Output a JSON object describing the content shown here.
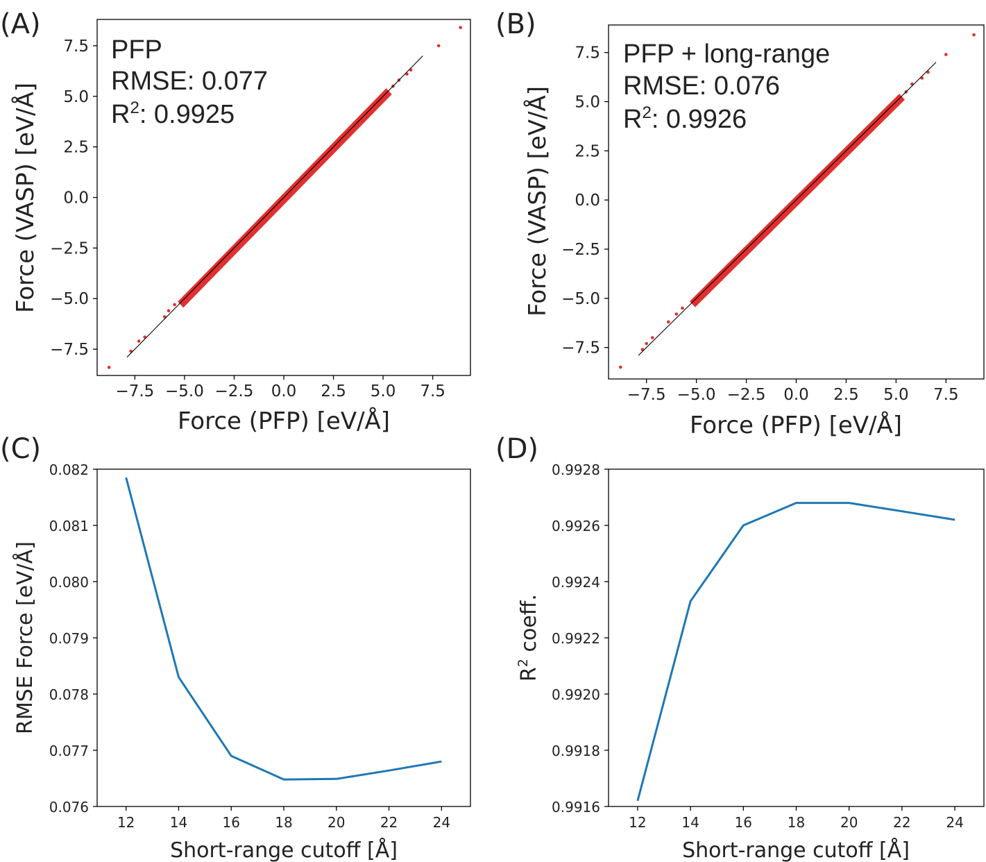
{
  "colors": {
    "scatter": "#e03030",
    "line": "#1f77b4",
    "reference": "#000000"
  },
  "chart_data": [
    {
      "panel": "(A)",
      "type": "scatter",
      "xlabel": "Force (PFP) [eV/Å]",
      "ylabel": "Force (VASP) [eV/Å]",
      "xlim": [
        -9.4,
        9.4
      ],
      "ylim": [
        -8.8,
        8.8
      ],
      "xticks": [
        -7.5,
        -5.0,
        -2.5,
        0.0,
        2.5,
        5.0,
        7.5
      ],
      "xtick_labels": [
        "−7.5",
        "−5.0",
        "−2.5",
        "0.0",
        "2.5",
        "5.0",
        "7.5"
      ],
      "yticks": [
        -7.5,
        -5.0,
        -2.5,
        0.0,
        2.5,
        5.0,
        7.5
      ],
      "ytick_labels": [
        "−7.5",
        "−5.0",
        "−2.5",
        "0.0",
        "2.5",
        "5.0",
        "7.5"
      ],
      "annotation": {
        "name": "PFP",
        "rmse": "RMSE: 0.077",
        "r2_prefix": "R",
        "r2_sup": "2",
        "r2_value": ": 0.9925"
      },
      "reference_line": {
        "x": [
          -7.9,
          7.0
        ],
        "y": [
          -7.9,
          7.0
        ]
      },
      "band": {
        "x_from": -5.2,
        "x_to": 5.3
      },
      "outliers": [
        {
          "x": -8.8,
          "y": -8.4
        },
        {
          "x": -7.7,
          "y": -7.6
        },
        {
          "x": -7.3,
          "y": -7.1
        },
        {
          "x": -7.0,
          "y": -6.9
        },
        {
          "x": -6.0,
          "y": -5.9
        },
        {
          "x": -5.8,
          "y": -5.6
        },
        {
          "x": -5.5,
          "y": -5.3
        },
        {
          "x": 5.5,
          "y": 5.5
        },
        {
          "x": 5.8,
          "y": 5.8
        },
        {
          "x": 6.2,
          "y": 6.1
        },
        {
          "x": 6.4,
          "y": 6.3
        },
        {
          "x": 7.8,
          "y": 7.5
        },
        {
          "x": 8.9,
          "y": 8.4
        }
      ]
    },
    {
      "panel": "(B)",
      "type": "scatter",
      "xlabel": "Force (PFP) [eV/Å]",
      "ylabel": "Force (VASP) [eV/Å]",
      "xlim": [
        -9.4,
        9.4
      ],
      "ylim": [
        -9.1,
        8.9
      ],
      "xticks": [
        -7.5,
        -5.0,
        -2.5,
        0.0,
        2.5,
        5.0,
        7.5
      ],
      "xtick_labels": [
        "−7.5",
        "−5.0",
        "−2.5",
        "0.0",
        "2.5",
        "5.0",
        "7.5"
      ],
      "yticks": [
        -7.5,
        -5.0,
        -2.5,
        0.0,
        2.5,
        5.0,
        7.5
      ],
      "ytick_labels": [
        "−7.5",
        "−5.0",
        "−2.5",
        "0.0",
        "2.5",
        "5.0",
        "7.5"
      ],
      "annotation": {
        "name": "PFP + long-range",
        "rmse": "RMSE: 0.076",
        "r2_prefix": "R",
        "r2_sup": "2",
        "r2_value": ": 0.9926"
      },
      "reference_line": {
        "x": [
          -7.9,
          7.0
        ],
        "y": [
          -7.9,
          7.0
        ]
      },
      "band": {
        "x_from": -5.2,
        "x_to": 5.3
      },
      "outliers": [
        {
          "x": -8.8,
          "y": -8.5
        },
        {
          "x": -7.7,
          "y": -7.6
        },
        {
          "x": -7.5,
          "y": -7.3
        },
        {
          "x": -7.2,
          "y": -7.0
        },
        {
          "x": -6.4,
          "y": -6.2
        },
        {
          "x": -6.0,
          "y": -5.8
        },
        {
          "x": -5.7,
          "y": -5.5
        },
        {
          "x": 5.5,
          "y": 5.5
        },
        {
          "x": 5.8,
          "y": 5.9
        },
        {
          "x": 6.3,
          "y": 6.2
        },
        {
          "x": 6.6,
          "y": 6.5
        },
        {
          "x": 7.5,
          "y": 7.4
        },
        {
          "x": 8.9,
          "y": 8.4
        }
      ]
    },
    {
      "panel": "(C)",
      "type": "line",
      "xlabel": "Short-range cutoff [Å]",
      "ylabel": "RMSE Force [eV/Å]",
      "xlim": [
        10.9,
        25.1
      ],
      "ylim": [
        0.076,
        0.082
      ],
      "xticks": [
        12,
        14,
        16,
        18,
        20,
        22,
        24
      ],
      "xtick_labels": [
        "12",
        "14",
        "16",
        "18",
        "20",
        "22",
        "24"
      ],
      "yticks": [
        0.076,
        0.077,
        0.078,
        0.079,
        0.08,
        0.081,
        0.082
      ],
      "ytick_labels": [
        "0.076",
        "0.077",
        "0.078",
        "0.079",
        "0.080",
        "0.081",
        "0.082"
      ],
      "x": [
        12,
        14,
        16,
        18,
        20,
        22,
        24
      ],
      "y": [
        0.08185,
        0.0783,
        0.0769,
        0.07648,
        0.07649,
        0.07664,
        0.0768
      ]
    },
    {
      "panel": "(D)",
      "type": "line",
      "xlabel": "Short-range cutoff [Å]",
      "ylabel_prefix": "R",
      "ylabel_sup": "2",
      "ylabel_suffix": " coeff.",
      "xlim": [
        10.9,
        25.1
      ],
      "ylim": [
        0.9916,
        0.9928
      ],
      "xticks": [
        12,
        14,
        16,
        18,
        20,
        22,
        24
      ],
      "xtick_labels": [
        "12",
        "14",
        "16",
        "18",
        "20",
        "22",
        "24"
      ],
      "yticks": [
        0.9916,
        0.9918,
        0.992,
        0.9922,
        0.9924,
        0.9926,
        0.9928
      ],
      "ytick_labels": [
        "0.9916",
        "0.9918",
        "0.9920",
        "0.9922",
        "0.9924",
        "0.9926",
        "0.9928"
      ],
      "x": [
        12,
        14,
        16,
        18,
        20,
        22,
        24
      ],
      "y": [
        0.99162,
        0.99233,
        0.9926,
        0.99268,
        0.99268,
        0.99265,
        0.99262
      ]
    }
  ]
}
